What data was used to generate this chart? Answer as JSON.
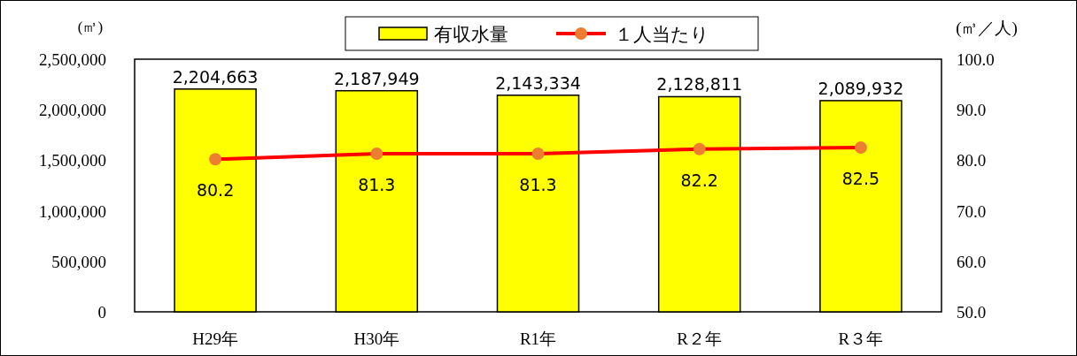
{
  "chart_data": {
    "type": "bar",
    "ylabel": "(㎥)",
    "y2label": "(㎥／人)",
    "categories": [
      "H29年",
      "H30年",
      "R1年",
      "R２年",
      "R３年"
    ],
    "series": [
      {
        "name": "有収水量",
        "color": "#ffff00",
        "values": [
          2204663,
          2187949,
          2143334,
          2128811,
          2089932
        ],
        "value_labels": [
          "2,204,663",
          "2,187,949",
          "2,143,334",
          "2,128,811",
          "2,089,932"
        ]
      },
      {
        "name": "１人当たり",
        "type": "line",
        "axis": "y2",
        "color": "#ff0000",
        "colors": [
          "#ed7d31",
          "#ed7d31",
          "#ed7d31",
          "#ed7d31",
          "#ed7d31"
        ],
        "values": [
          80.2,
          81.3,
          81.3,
          82.2,
          82.5
        ]
      }
    ],
    "ylim": [
      0,
      2500000
    ],
    "yticks": [
      {
        "value": 0,
        "label": "0"
      },
      {
        "value": 500000,
        "label": "500,000"
      },
      {
        "value": 1000000,
        "label": "1,000,000"
      },
      {
        "value": 1500000,
        "label": "1,500,000"
      },
      {
        "value": 2000000,
        "label": "2,000,000"
      },
      {
        "value": 2500000,
        "label": "2,500,000"
      }
    ],
    "y2lim": [
      50,
      100
    ],
    "y2ticks": [
      {
        "value": 50,
        "label": "50.0"
      },
      {
        "value": 60,
        "label": "60.0"
      },
      {
        "value": 70,
        "label": "70.0"
      },
      {
        "value": 80,
        "label": "80.0"
      },
      {
        "value": 90,
        "label": "90.0"
      },
      {
        "value": 100,
        "label": "100.0"
      }
    ],
    "data_labels": true,
    "legend": "top",
    "marker": "circle"
  }
}
